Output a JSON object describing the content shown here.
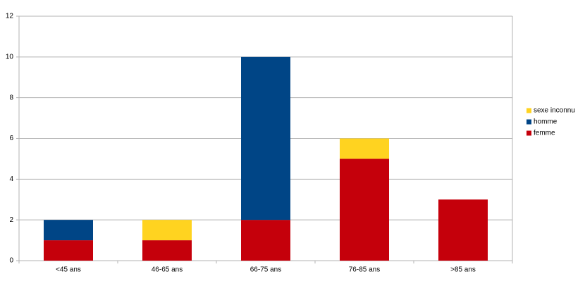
{
  "chart_data": {
    "type": "stacked_bar",
    "categories": [
      "<45 ans",
      "46-65 ans",
      "66-75 ans",
      "76-85 ans",
      ">85 ans"
    ],
    "series": [
      {
        "name": "femme",
        "color": "#c5000b",
        "values": [
          1,
          1,
          2,
          5,
          3
        ]
      },
      {
        "name": "homme",
        "color": "#004586",
        "values": [
          1,
          0,
          8,
          0,
          0
        ]
      },
      {
        "name": "sexe inconnu",
        "color": "#ffd320",
        "values": [
          0,
          1,
          0,
          1,
          0
        ]
      }
    ],
    "ylim": [
      0,
      12
    ],
    "yticks": [
      0,
      2,
      4,
      6,
      8,
      10,
      12
    ],
    "grid": true,
    "legend": "right"
  }
}
